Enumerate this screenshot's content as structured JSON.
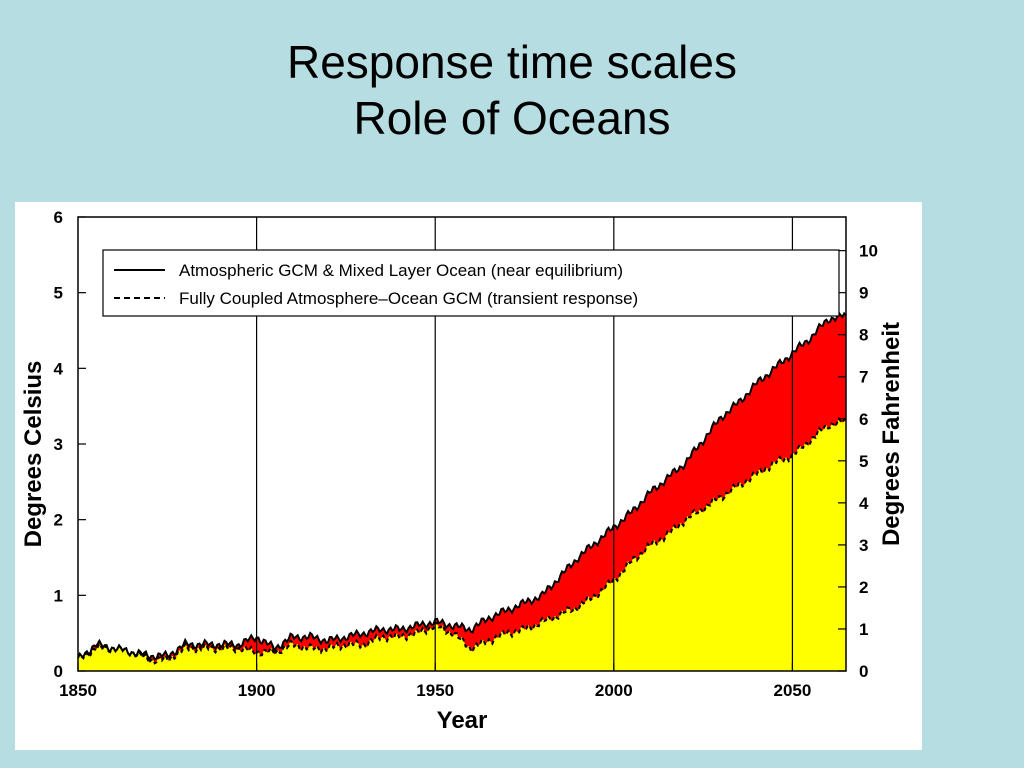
{
  "slide": {
    "title_line1": "Response time scales",
    "title_line2": "Role of Oceans"
  },
  "colors": {
    "background": "#b6dde2",
    "panel": "#ffffff",
    "gap_fill": "#ff0000",
    "transient_fill": "#ffff00",
    "line": "#000000"
  },
  "chart_data": {
    "type": "area",
    "title": "",
    "xlabel": "Year",
    "ylabel": "Degrees Celsius",
    "ylabel_right": "Degrees Fahrenheit",
    "xlim": [
      1850,
      2065
    ],
    "ylim": [
      0,
      6
    ],
    "ylim_right_fahrenheit": [
      0,
      10.8
    ],
    "x_ticks": [
      1850,
      1900,
      1950,
      2000,
      2050
    ],
    "y_ticks": [
      0,
      1,
      2,
      3,
      4,
      5,
      6
    ],
    "y_ticks_right": [
      0,
      1,
      2,
      3,
      4,
      5,
      6,
      7,
      8,
      9,
      10
    ],
    "vertical_gridlines": [
      1900,
      1950,
      2000,
      2050
    ],
    "legend_position": "top",
    "legend": [
      {
        "label": "Atmospheric GCM & Mixed Layer Ocean (near equilibrium)",
        "style": "solid"
      },
      {
        "label": "Fully Coupled Atmosphere–Ocean GCM (transient response)",
        "style": "dashed"
      }
    ],
    "x": [
      1850,
      1855,
      1860,
      1865,
      1870,
      1875,
      1880,
      1885,
      1890,
      1895,
      1900,
      1905,
      1910,
      1915,
      1920,
      1925,
      1930,
      1935,
      1940,
      1945,
      1950,
      1955,
      1960,
      1965,
      1970,
      1975,
      1980,
      1985,
      1990,
      1995,
      2000,
      2005,
      2010,
      2015,
      2020,
      2025,
      2030,
      2035,
      2040,
      2045,
      2050,
      2055,
      2060,
      2065
    ],
    "series": [
      {
        "name": "Atmospheric GCM & Mixed Layer Ocean (near equilibrium)",
        "style": "solid",
        "values": [
          0.15,
          0.35,
          0.3,
          0.25,
          0.2,
          0.2,
          0.35,
          0.35,
          0.35,
          0.35,
          0.45,
          0.3,
          0.45,
          0.45,
          0.4,
          0.45,
          0.5,
          0.55,
          0.55,
          0.6,
          0.65,
          0.6,
          0.55,
          0.7,
          0.8,
          0.9,
          1.0,
          1.25,
          1.5,
          1.7,
          1.9,
          2.1,
          2.35,
          2.55,
          2.75,
          3.05,
          3.35,
          3.55,
          3.8,
          4.0,
          4.2,
          4.4,
          4.65,
          4.7
        ]
      },
      {
        "name": "Fully Coupled Atmosphere–Ocean GCM (transient response)",
        "style": "dashed",
        "values": [
          0.15,
          0.3,
          0.3,
          0.25,
          0.15,
          0.15,
          0.3,
          0.3,
          0.3,
          0.3,
          0.25,
          0.25,
          0.35,
          0.3,
          0.3,
          0.35,
          0.35,
          0.45,
          0.45,
          0.5,
          0.6,
          0.5,
          0.3,
          0.4,
          0.5,
          0.55,
          0.65,
          0.75,
          0.85,
          1.0,
          1.2,
          1.45,
          1.65,
          1.8,
          2.0,
          2.15,
          2.3,
          2.45,
          2.6,
          2.75,
          2.85,
          3.05,
          3.25,
          3.3
        ]
      }
    ]
  }
}
